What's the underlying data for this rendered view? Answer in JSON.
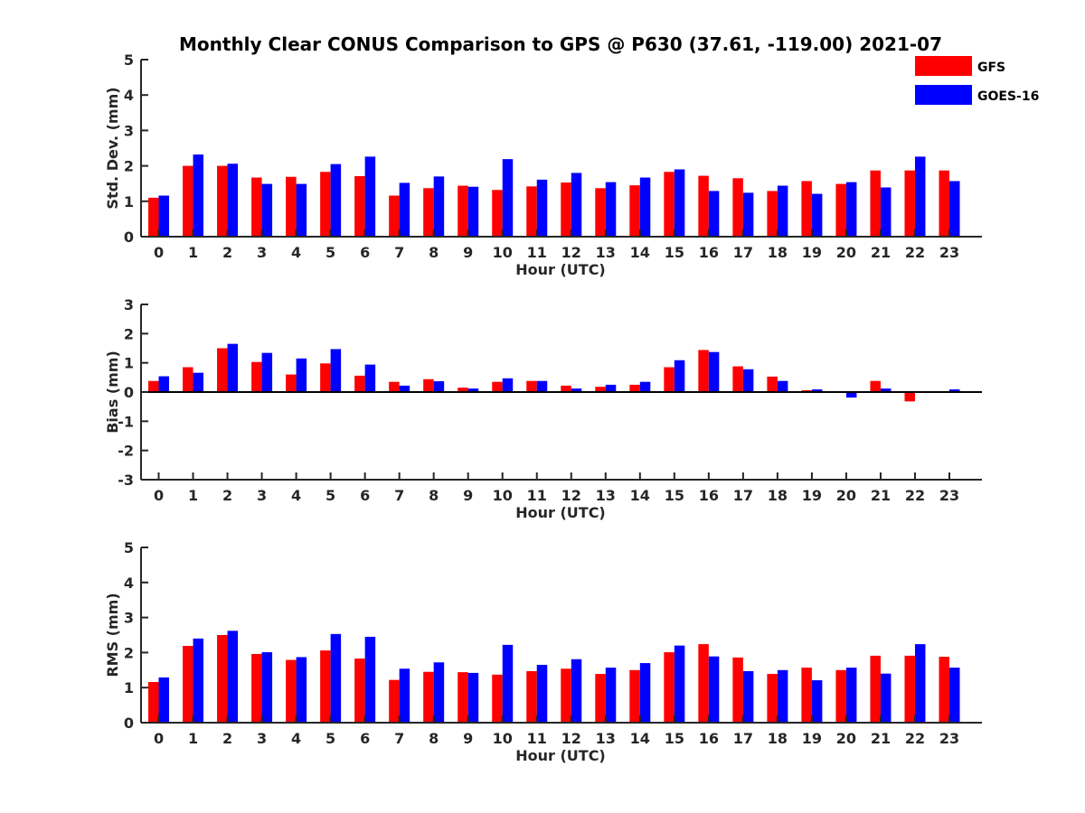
{
  "figure": {
    "title": "Monthly Clear CONUS Comparison to GPS @ P630 (37.61, -119.00) 2021-07"
  },
  "legend": {
    "items": [
      {
        "name": "GFS",
        "color": "#ff0000"
      },
      {
        "name": "GOES-16",
        "color": "#0000ff"
      }
    ]
  },
  "chart_data": [
    {
      "type": "bar",
      "title": "Monthly Clear CONUS Comparison to GPS @ P630 (37.61, -119.00) 2021-07",
      "xlabel": "Hour (UTC)",
      "ylabel": "Std. Dev. (mm)",
      "ylim": [
        0,
        5
      ],
      "yticks": [
        0,
        1,
        2,
        3,
        4,
        5
      ],
      "categories": [
        "0",
        "1",
        "2",
        "3",
        "4",
        "5",
        "6",
        "7",
        "8",
        "9",
        "10",
        "11",
        "12",
        "13",
        "14",
        "15",
        "16",
        "17",
        "18",
        "19",
        "20",
        "21",
        "22",
        "23"
      ],
      "series": [
        {
          "name": "GFS",
          "color": "#ff0000",
          "values": [
            1.1,
            2.0,
            2.0,
            1.67,
            1.69,
            1.83,
            1.71,
            1.16,
            1.37,
            1.44,
            1.32,
            1.42,
            1.53,
            1.37,
            1.45,
            1.83,
            1.72,
            1.65,
            1.29,
            1.57,
            1.49,
            1.87,
            1.87,
            1.87
          ]
        },
        {
          "name": "GOES-16",
          "color": "#0000ff",
          "values": [
            1.16,
            2.32,
            2.06,
            1.49,
            1.49,
            2.05,
            2.26,
            1.52,
            1.7,
            1.41,
            2.19,
            1.61,
            1.8,
            1.54,
            1.67,
            1.9,
            1.29,
            1.24,
            1.44,
            1.21,
            1.54,
            1.39,
            2.26,
            1.57
          ]
        }
      ]
    },
    {
      "type": "bar",
      "xlabel": "Hour (UTC)",
      "ylabel": "Bias (mm)",
      "ylim": [
        -3,
        3
      ],
      "yticks": [
        -3,
        -2,
        -1,
        0,
        1,
        2,
        3
      ],
      "categories": [
        "0",
        "1",
        "2",
        "3",
        "4",
        "5",
        "6",
        "7",
        "8",
        "9",
        "10",
        "11",
        "12",
        "13",
        "14",
        "15",
        "16",
        "17",
        "18",
        "19",
        "20",
        "21",
        "22",
        "23"
      ],
      "series": [
        {
          "name": "GFS",
          "color": "#ff0000",
          "values": [
            0.38,
            0.85,
            1.5,
            1.03,
            0.6,
            0.98,
            0.56,
            0.35,
            0.44,
            0.15,
            0.35,
            0.38,
            0.22,
            0.18,
            0.25,
            0.85,
            1.44,
            0.88,
            0.53,
            0.06,
            0.0,
            0.38,
            -0.32,
            -0.03
          ]
        },
        {
          "name": "GOES-16",
          "color": "#0000ff",
          "values": [
            0.54,
            0.66,
            1.65,
            1.34,
            1.15,
            1.47,
            0.94,
            0.22,
            0.37,
            0.12,
            0.47,
            0.38,
            0.12,
            0.25,
            0.35,
            1.09,
            1.37,
            0.78,
            0.38,
            0.09,
            -0.19,
            0.12,
            -0.03,
            0.09
          ]
        }
      ]
    },
    {
      "type": "bar",
      "xlabel": "Hour (UTC)",
      "ylabel": "RMS (mm)",
      "ylim": [
        0,
        5
      ],
      "yticks": [
        0,
        1,
        2,
        3,
        4,
        5
      ],
      "categories": [
        "0",
        "1",
        "2",
        "3",
        "4",
        "5",
        "6",
        "7",
        "8",
        "9",
        "10",
        "11",
        "12",
        "13",
        "14",
        "15",
        "16",
        "17",
        "18",
        "19",
        "20",
        "21",
        "22",
        "23"
      ],
      "series": [
        {
          "name": "GFS",
          "color": "#ff0000",
          "values": [
            1.16,
            2.19,
            2.5,
            1.96,
            1.79,
            2.06,
            1.83,
            1.22,
            1.45,
            1.44,
            1.37,
            1.47,
            1.54,
            1.39,
            1.5,
            2.01,
            2.24,
            1.86,
            1.39,
            1.57,
            1.5,
            1.91,
            1.91,
            1.88
          ]
        },
        {
          "name": "GOES-16",
          "color": "#0000ff",
          "values": [
            1.29,
            2.4,
            2.62,
            2.01,
            1.87,
            2.53,
            2.45,
            1.54,
            1.72,
            1.42,
            2.22,
            1.65,
            1.81,
            1.57,
            1.7,
            2.2,
            1.89,
            1.47,
            1.5,
            1.21,
            1.57,
            1.4,
            2.24,
            1.57
          ]
        }
      ]
    }
  ]
}
